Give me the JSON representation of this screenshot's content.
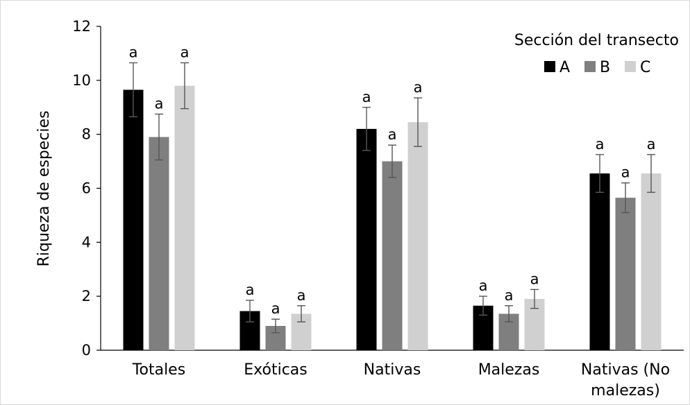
{
  "chart_data": {
    "type": "bar",
    "title": "",
    "xlabel": "",
    "ylabel": "Riqueza de especies",
    "ylim": [
      0,
      12
    ],
    "yticks": [
      0,
      2,
      4,
      6,
      8,
      10,
      12
    ],
    "grid": false,
    "legend": {
      "title": "Sección del transecto",
      "position": "top-right"
    },
    "categories": [
      [
        "Totales"
      ],
      [
        "Exóticas"
      ],
      [
        "Nativas"
      ],
      [
        "Malezas"
      ],
      [
        "Nativas (No",
        "malezas)"
      ]
    ],
    "series": [
      {
        "name": "A",
        "color": "#000000",
        "values": [
          9.65,
          1.45,
          8.2,
          1.65,
          6.55
        ],
        "errors": [
          1.0,
          0.4,
          0.8,
          0.35,
          0.7
        ],
        "labels": [
          "a",
          "a",
          "a",
          "a",
          "a"
        ]
      },
      {
        "name": "B",
        "color": "#7f7f7f",
        "values": [
          7.9,
          0.9,
          7.0,
          1.35,
          5.65
        ],
        "errors": [
          0.85,
          0.25,
          0.6,
          0.3,
          0.55
        ],
        "labels": [
          "a",
          "a",
          "a",
          "a",
          "a"
        ]
      },
      {
        "name": "C",
        "color": "#d0d0d0",
        "values": [
          9.8,
          1.35,
          8.45,
          1.9,
          6.55
        ],
        "errors": [
          0.85,
          0.3,
          0.9,
          0.35,
          0.7
        ],
        "labels": [
          "a",
          "a",
          "a",
          "a",
          "a"
        ]
      }
    ]
  }
}
